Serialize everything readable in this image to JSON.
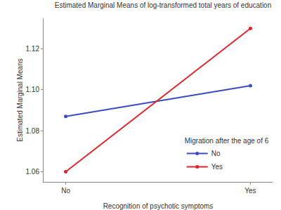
{
  "chart_data": {
    "type": "line",
    "title": "Estimated Marginal Means of log-transformed total years of education",
    "x_label": "Recognition of psychotic symptoms",
    "y_label": "Estimated Marginal Means",
    "legend_title": "Migration after the age of 6",
    "categories": [
      "No",
      "Yes"
    ],
    "series": [
      {
        "name": "No",
        "color": "#3b4cc0",
        "values": [
          1.087,
          1.102
        ]
      },
      {
        "name": "Yes",
        "color": "#e0242b",
        "values": [
          1.06,
          1.13
        ]
      }
    ],
    "ylim": [
      1.055,
      1.135
    ],
    "yticks": [
      1.06,
      1.08,
      {
        "value": 1.1,
        "label": "1.10"
      },
      1.12
    ],
    "grid": false,
    "legend": "lower right",
    "marker": "circle"
  }
}
